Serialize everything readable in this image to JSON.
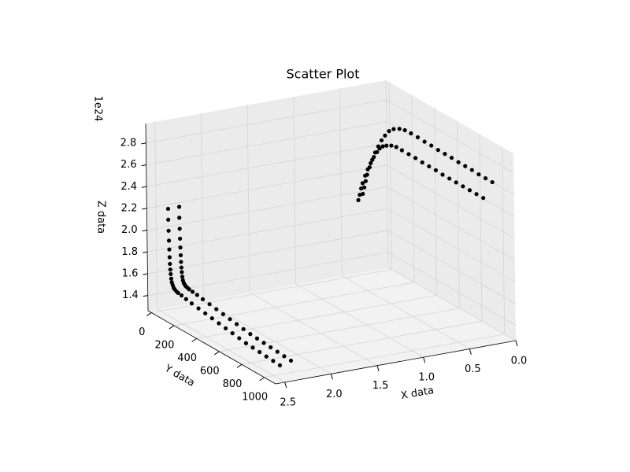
{
  "chart_data": {
    "type": "scatter3d",
    "title": "Scatter Plot",
    "xlabel": "X data",
    "ylabel": "Y data",
    "zlabel": "Z data",
    "z_offset_label": "1e24",
    "color": "#000000",
    "grid": true,
    "xlim": [
      0,
      2.6
    ],
    "ylim": [
      -30,
      1100
    ],
    "zlim": [
      1.26,
      2.98
    ],
    "xticks": [
      {
        "value": 0,
        "label": "0.0"
      },
      0.5,
      {
        "value": 1,
        "label": "1.0"
      },
      1.5,
      {
        "value": 2,
        "label": "2.0"
      },
      2.5
    ],
    "yticks": [
      0,
      200,
      400,
      600,
      800,
      1000
    ],
    "zticks": [
      1.4,
      1.6,
      1.8,
      {
        "value": 2,
        "label": "2.0"
      },
      2.2,
      2.4,
      2.6,
      2.8
    ],
    "x": [
      2.43,
      2.43,
      2.43,
      2.43,
      2.43,
      2.43,
      2.43,
      2.43,
      2.43,
      2.43,
      2.43,
      2.43,
      2.43,
      2.43,
      2.43,
      2.43,
      2.43,
      2.43,
      2.43,
      2.43,
      2.43,
      2.43,
      2.43,
      2.43,
      2.43,
      2.43,
      2.43,
      2.43,
      2.43,
      2.43,
      2.43,
      2.43,
      2.31,
      2.31,
      2.31,
      2.31,
      2.31,
      2.31,
      2.31,
      2.31,
      2.31,
      2.31,
      2.31,
      2.31,
      2.31,
      2.31,
      2.31,
      2.31,
      2.31,
      2.31,
      2.31,
      2.31,
      2.31,
      2.31,
      2.31,
      2.31,
      2.31,
      2.31,
      2.31,
      2.31,
      2.31,
      2.31,
      2.31,
      2.31,
      0.3,
      0.29,
      0.28,
      0.27,
      0.25,
      0.23,
      0.21,
      0.19,
      0.17,
      0.15,
      0.13,
      0.11,
      0.09,
      0.08,
      0.075,
      0.075,
      0.075,
      0.075,
      0.075,
      0.075,
      0.075,
      0.075,
      0.075,
      0.075,
      0.075,
      0.075,
      0.075,
      0.35,
      0.34,
      0.33,
      0.32,
      0.3,
      0.28,
      0.26,
      0.24,
      0.22,
      0.21,
      0.2,
      0.19,
      0.18,
      0.175,
      0.175,
      0.175,
      0.175,
      0.175,
      0.175,
      0.175,
      0.175,
      0.175,
      0.175,
      0.175,
      0.175,
      0.175,
      0.175
    ],
    "y": [
      20,
      20,
      22,
      24,
      26,
      28,
      30,
      33,
      36,
      40,
      45,
      52,
      60,
      70,
      85,
      100,
      130,
      170,
      220,
      280,
      340,
      400,
      460,
      520,
      580,
      640,
      700,
      760,
      820,
      880,
      940,
      1000,
      20,
      20,
      22,
      24,
      26,
      28,
      30,
      33,
      36,
      40,
      45,
      52,
      60,
      70,
      85,
      100,
      130,
      170,
      220,
      280,
      340,
      400,
      460,
      520,
      580,
      640,
      700,
      760,
      820,
      880,
      940,
      1000,
      0,
      5,
      10,
      15,
      22,
      30,
      40,
      52,
      65,
      80,
      100,
      125,
      160,
      200,
      250,
      310,
      370,
      430,
      490,
      550,
      610,
      670,
      730,
      790,
      850,
      910,
      970,
      0,
      5,
      10,
      15,
      22,
      30,
      40,
      52,
      65,
      80,
      100,
      125,
      160,
      200,
      250,
      310,
      370,
      430,
      490,
      550,
      610,
      670,
      730,
      790,
      850,
      910,
      970
    ],
    "z": [
      2.2,
      2.1,
      2.0,
      1.91,
      1.83,
      1.76,
      1.7,
      1.65,
      1.61,
      1.57,
      1.54,
      1.52,
      1.5,
      1.49,
      1.48,
      1.475,
      1.47,
      1.46,
      1.45,
      1.44,
      1.43,
      1.42,
      1.41,
      1.4,
      1.39,
      1.38,
      1.37,
      1.365,
      1.36,
      1.355,
      1.35,
      1.345,
      2.2,
      2.1,
      2.0,
      1.91,
      1.83,
      1.76,
      1.7,
      1.65,
      1.61,
      1.57,
      1.54,
      1.52,
      1.51,
      1.5,
      1.495,
      1.49,
      1.485,
      1.48,
      1.47,
      1.46,
      1.45,
      1.44,
      1.43,
      1.42,
      1.41,
      1.4,
      1.395,
      1.39,
      1.385,
      1.38,
      1.375,
      1.37,
      2.0,
      2.06,
      2.12,
      2.18,
      2.25,
      2.32,
      2.39,
      2.45,
      2.51,
      2.56,
      2.61,
      2.64,
      2.66,
      2.67,
      2.67,
      2.67,
      2.665,
      2.665,
      2.66,
      2.66,
      2.66,
      2.655,
      2.655,
      2.655,
      2.65,
      2.65,
      2.65,
      1.95,
      2.0,
      2.06,
      2.11,
      2.18,
      2.24,
      2.3,
      2.36,
      2.41,
      2.45,
      2.48,
      2.5,
      2.52,
      2.53,
      2.53,
      2.53,
      2.53,
      2.525,
      2.525,
      2.525,
      2.52,
      2.52,
      2.52,
      2.52,
      2.52,
      2.52,
      2.52
    ]
  }
}
